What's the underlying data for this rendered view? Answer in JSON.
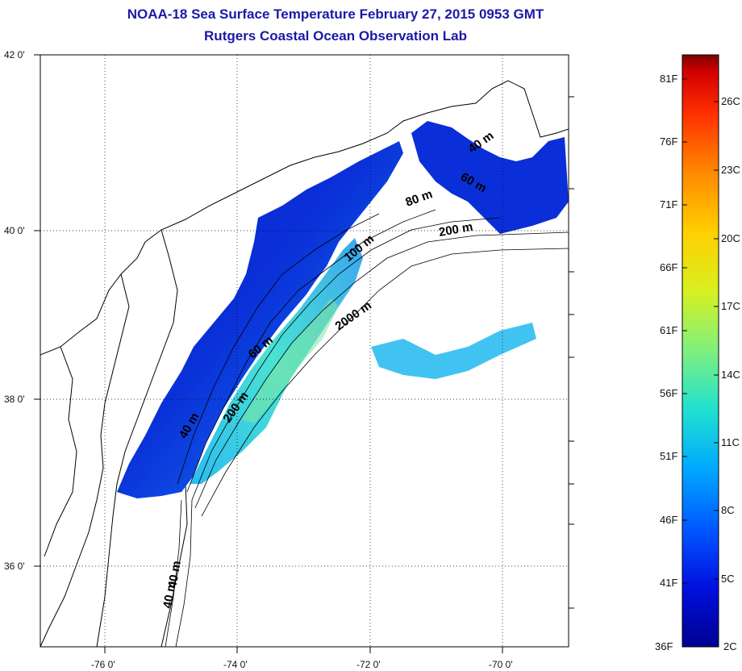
{
  "title": "NOAA-18 Sea Surface Temperature February 27, 2015 0953 GMT",
  "subtitle": "Rutgers Coastal Ocean Observation Lab",
  "map": {
    "lon_ticks": [
      "-76 0'",
      "-74 0'",
      "-72 0'",
      "-70 0'"
    ],
    "lat_ticks": [
      "42 0'",
      "40 0'",
      "38 0'",
      "36 0'"
    ],
    "contour_labels": [
      "40 m",
      "60 m",
      "80 m",
      "100 m",
      "200 m",
      "2000 m",
      "200 m",
      "60 m",
      "40 m",
      "40 m",
      "40 m"
    ]
  },
  "colorbar": {
    "fahrenheit_labels": [
      "81F",
      "76F",
      "71F",
      "66F",
      "61F",
      "56F",
      "51F",
      "46F",
      "41F",
      "36F"
    ],
    "celsius_labels": [
      "26C",
      "23C",
      "20C",
      "17C",
      "14C",
      "11C",
      "8C",
      "5C",
      "2C"
    ],
    "colors": [
      "#7f0000",
      "#d40000",
      "#ff3000",
      "#ff8a00",
      "#ffd000",
      "#d8f020",
      "#7ef07e",
      "#20e0d0",
      "#00a8ff",
      "#0058ff",
      "#0010e0",
      "#00008f"
    ]
  }
}
